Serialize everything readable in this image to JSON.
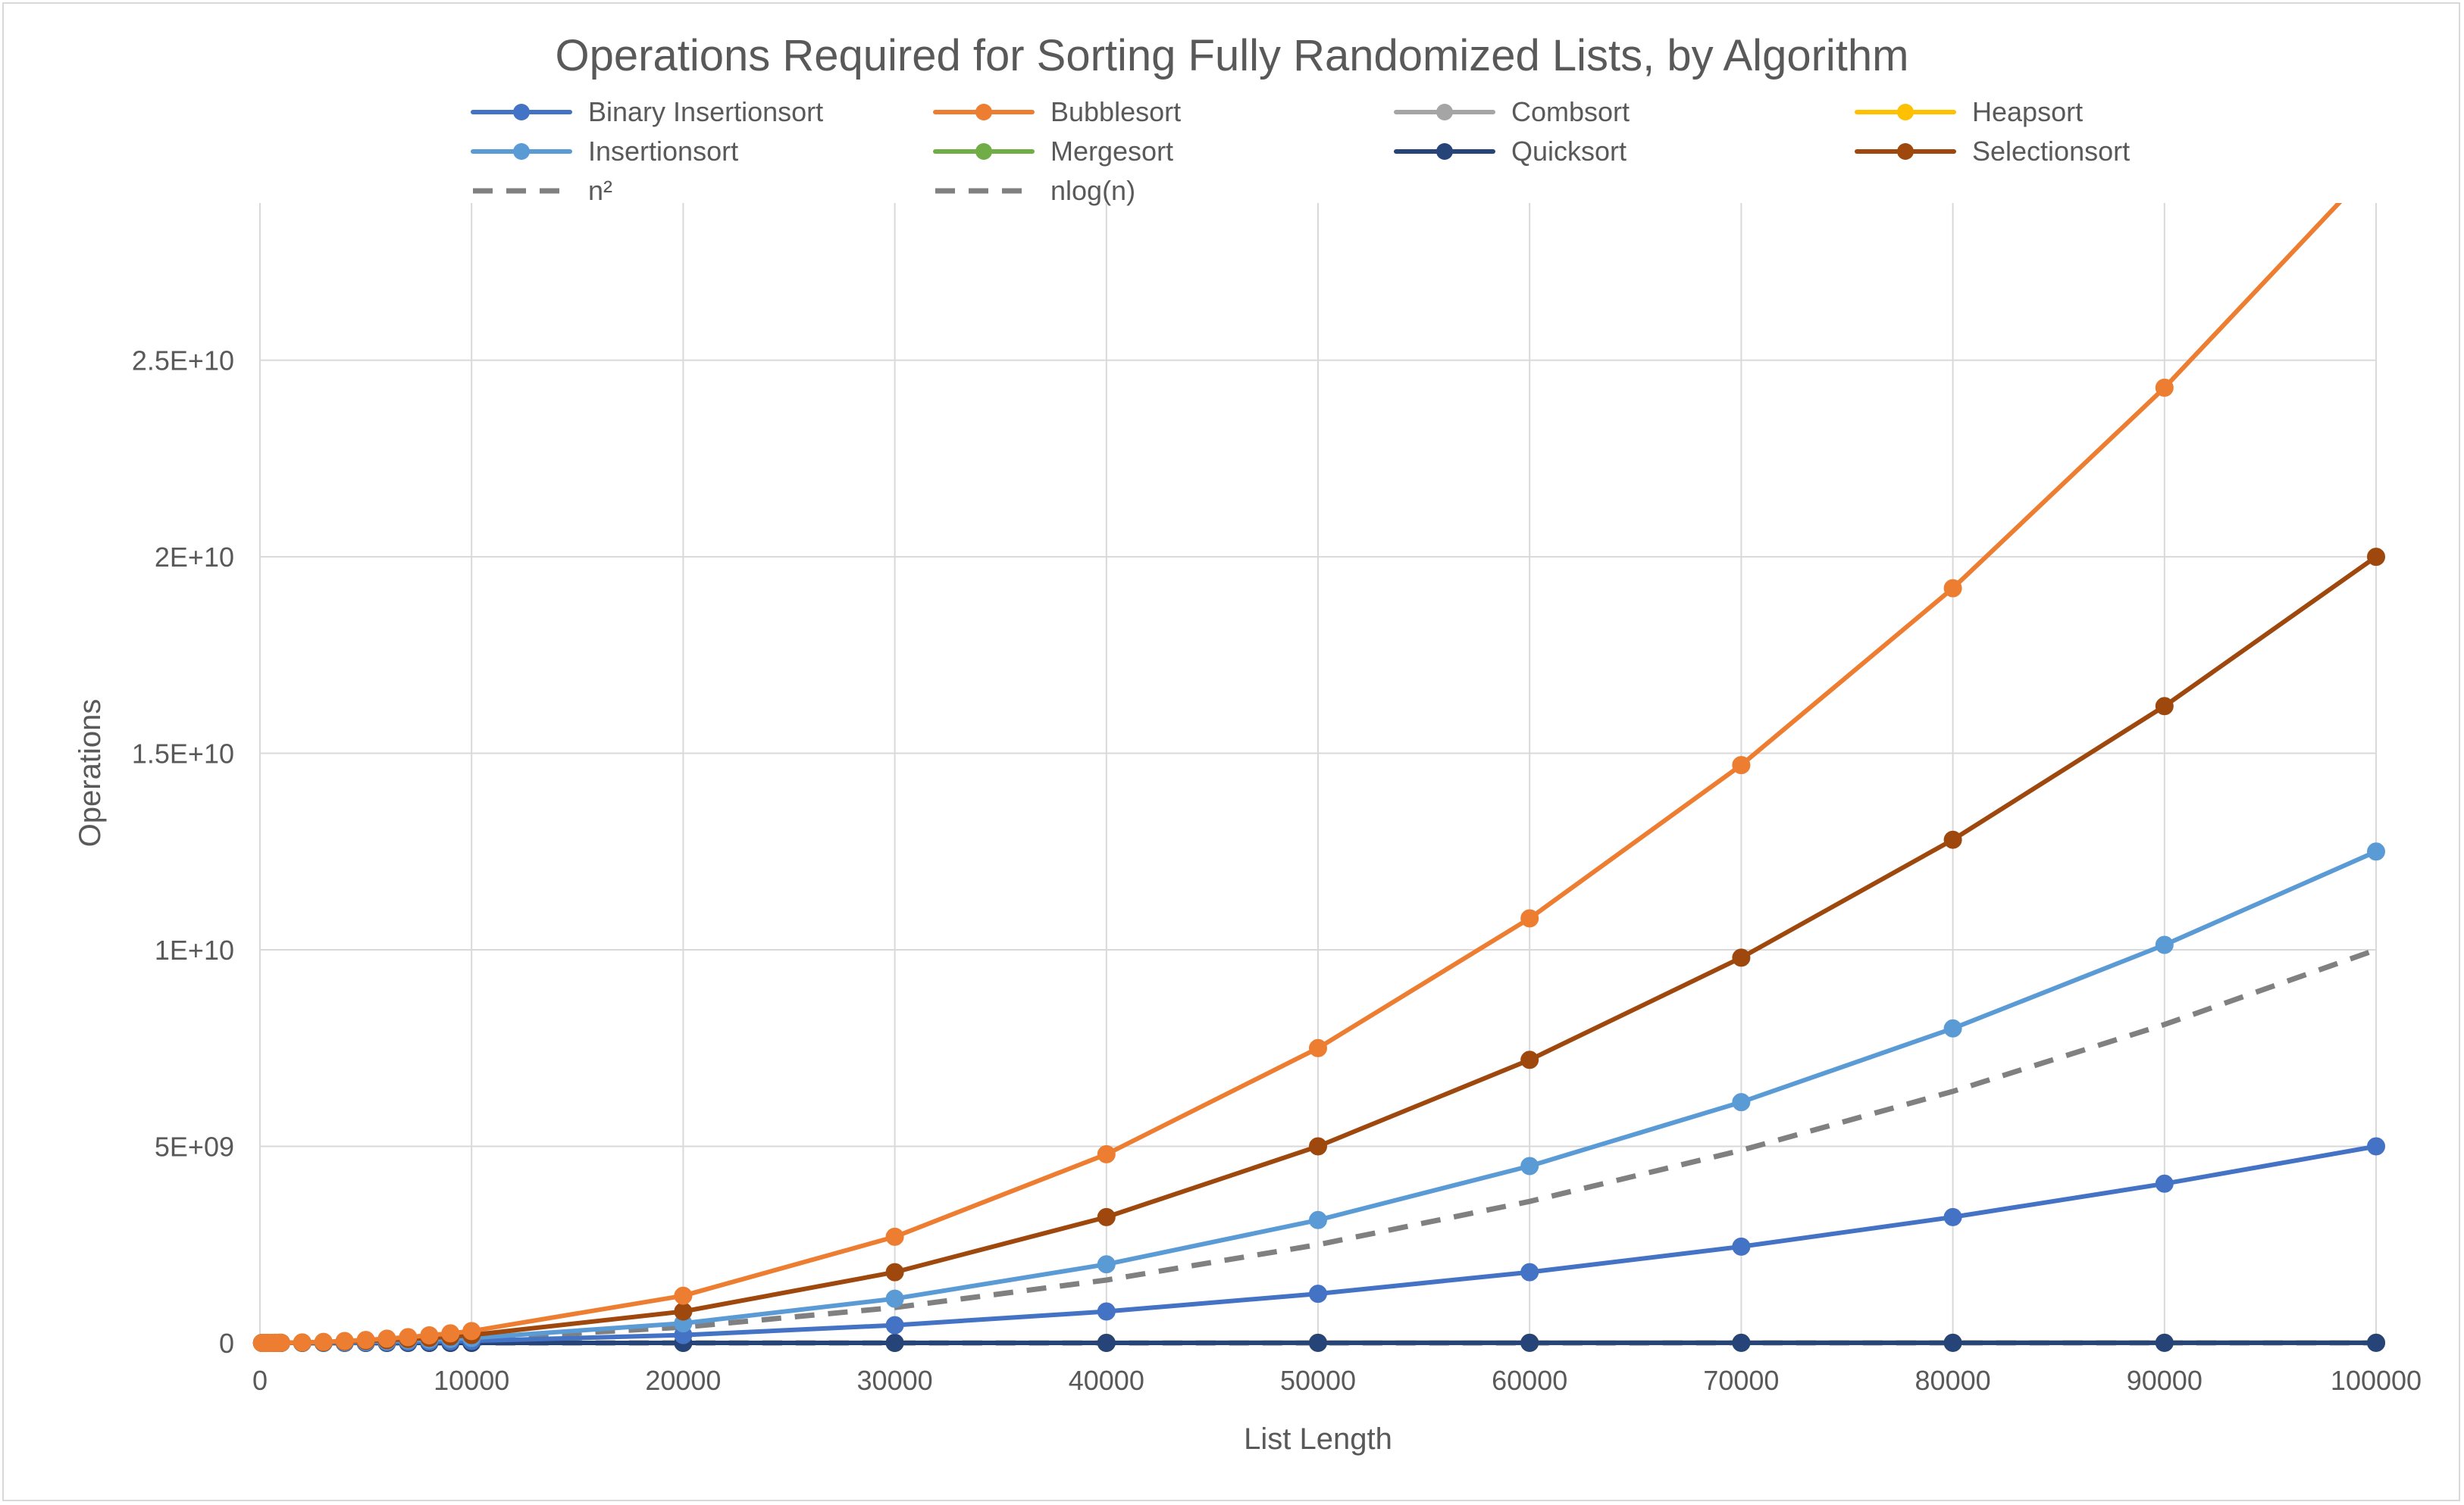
{
  "chart_data": {
    "type": "line",
    "title": "Operations Required for Sorting Fully Randomized Lists, by Algorithm",
    "xlabel": "List Length",
    "ylabel": "Operations",
    "xlim": [
      0,
      100000
    ],
    "ylim": [
      0,
      29000000000
    ],
    "x_ticks": [
      0,
      10000,
      20000,
      30000,
      40000,
      50000,
      60000,
      70000,
      80000,
      90000,
      100000
    ],
    "x_tick_labels": [
      "0",
      "10000",
      "20000",
      "30000",
      "40000",
      "50000",
      "60000",
      "70000",
      "80000",
      "90000",
      "100000"
    ],
    "y_ticks": [
      0,
      5000000000,
      10000000000,
      15000000000,
      20000000000,
      25000000000
    ],
    "y_tick_labels": [
      "0",
      "5E+09",
      "1E+10",
      "1.5E+10",
      "2E+10",
      "2.5E+10"
    ],
    "grid": true,
    "legend_position": "top",
    "x": [
      100,
      200,
      300,
      400,
      500,
      600,
      700,
      800,
      900,
      1000,
      2000,
      3000,
      4000,
      5000,
      6000,
      7000,
      8000,
      9000,
      10000,
      20000,
      30000,
      40000,
      50000,
      60000,
      70000,
      80000,
      90000,
      100000
    ],
    "series": [
      {
        "name": "Binary Insertionsort",
        "color": "#4472c4",
        "style": "solid",
        "marker": true,
        "values": [
          5000,
          20000,
          45000,
          80000,
          125000,
          180000,
          245000,
          320000,
          405000,
          500000,
          2000000,
          4500000,
          8000000,
          12500000,
          18000000,
          24500000,
          32000000,
          40500000,
          50000000,
          200000000,
          450000000,
          800000000,
          1250000000,
          1800000000,
          2450000000,
          3200000000,
          4050000000,
          5000000000
        ]
      },
      {
        "name": "Bubblesort",
        "color": "#ed7d31",
        "style": "solid",
        "marker": true,
        "values": [
          30000,
          120000,
          270000,
          480000,
          750000,
          1080000,
          1470000,
          1920000,
          2430000,
          3000000,
          12000000,
          27000000,
          48000000,
          75000000,
          108000000,
          147000000,
          192000000,
          243000000,
          300000000,
          1200000000,
          2700000000,
          4800000000,
          7500000000,
          10800000000,
          14700000000,
          19200000000,
          24300000000,
          30000000000
        ]
      },
      {
        "name": "Combsort",
        "color": "#a5a5a5",
        "style": "solid",
        "marker": true,
        "values": [
          2000,
          4500,
          7500,
          10500,
          13500,
          17000,
          20500,
          24000,
          27500,
          31000,
          70000,
          110000,
          150000,
          195000,
          240000,
          285000,
          330000,
          375000,
          420000,
          900000,
          1400000,
          1950000,
          2500000,
          3050000,
          3600000,
          4200000,
          4800000,
          5400000
        ]
      },
      {
        "name": "Heapsort",
        "color": "#ffc000",
        "style": "solid",
        "marker": true,
        "values": [
          2500,
          5500,
          9000,
          12500,
          16500,
          20500,
          24500,
          29000,
          33000,
          37500,
          82000,
          130000,
          180000,
          230000,
          280000,
          335000,
          385000,
          440000,
          490000,
          1050000,
          1650000,
          2250000,
          2900000,
          3550000,
          4200000,
          4850000,
          5500000,
          6150000
        ]
      },
      {
        "name": "Insertionsort",
        "color": "#5b9bd5",
        "style": "solid",
        "marker": true,
        "values": [
          12500,
          50000,
          112500,
          200000,
          312500,
          450000,
          612500,
          800000,
          1012500,
          1250000,
          5000000,
          11250000,
          20000000,
          31250000,
          45000000,
          61250000,
          80000000,
          101250000,
          125000000,
          500000000,
          1125000000,
          2000000000,
          3125000000,
          4500000000,
          6125000000,
          8000000000,
          10125000000,
          12500000000
        ]
      },
      {
        "name": "Mergesort",
        "color": "#70ad47",
        "style": "solid",
        "marker": true,
        "values": [
          1300,
          3000,
          4900,
          6900,
          9000,
          11100,
          13200,
          15400,
          17700,
          20000,
          44000,
          69000,
          96000,
          123000,
          150000,
          178000,
          206000,
          234000,
          264000,
          568000,
          890000,
          1220000,
          1560000,
          1910000,
          2260000,
          2620000,
          2970000,
          3340000
        ]
      },
      {
        "name": "Quicksort",
        "color": "#264478",
        "style": "solid",
        "marker": true,
        "values": [
          1000,
          2200,
          3500,
          5000,
          6500,
          8000,
          9500,
          11000,
          12600,
          14200,
          31000,
          49000,
          68000,
          87000,
          107000,
          127000,
          147000,
          167000,
          188000,
          405000,
          635000,
          870000,
          1110000,
          1355000,
          1605000,
          1860000,
          2115000,
          2375000
        ]
      },
      {
        "name": "Selectionsort",
        "color": "#9e480e",
        "style": "solid",
        "marker": true,
        "values": [
          20000,
          80000,
          180000,
          320000,
          500000,
          720000,
          980000,
          1280000,
          1620000,
          2000000,
          8000000,
          18000000,
          32000000,
          50000000,
          72000000,
          98000000,
          128000000,
          162000000,
          200000000,
          800000000,
          1800000000,
          3200000000,
          5000000000,
          7200000000,
          9800000000,
          12800000000,
          16200000000,
          20000000000
        ]
      },
      {
        "name": "n²",
        "color": "#808080",
        "style": "dashed",
        "marker": false,
        "values": [
          10000,
          40000,
          90000,
          160000,
          250000,
          360000,
          490000,
          640000,
          810000,
          1000000,
          4000000,
          9000000,
          16000000,
          25000000,
          36000000,
          49000000,
          64000000,
          81000000,
          100000000,
          400000000,
          900000000,
          1600000000,
          2500000000,
          3600000000,
          4900000000,
          6400000000,
          8100000000,
          10000000000
        ]
      },
      {
        "name": "nlog(n)",
        "color": "#808080",
        "style": "dashed",
        "marker": false,
        "values": [
          664,
          1529,
          2469,
          3458,
          4483,
          5537,
          6616,
          7715,
          8834,
          9966,
          21932,
          34652,
          47863,
          61439,
          75304,
          89412,
          103726,
          118221,
          132877,
          285754,
          446180,
          611508,
          780482,
          952360,
          1126680,
          1303017,
          1481090,
          1660964
        ]
      }
    ]
  }
}
